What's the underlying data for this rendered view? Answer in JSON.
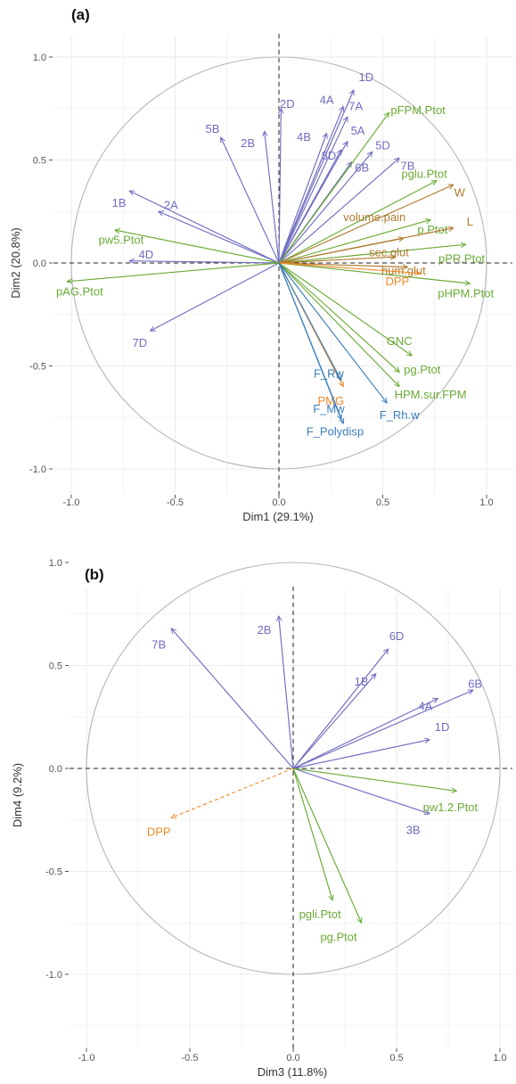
{
  "colors": {
    "purple": "#6f6cc0",
    "green": "#6aaa35",
    "brown": "#b07a2e",
    "orange": "#ee8a2a",
    "blue": "#3a7dbb",
    "grid": "#ebebeb",
    "circle": "#b5b5b5"
  },
  "chart_data": [
    {
      "type": "scatter",
      "panel": "(a)",
      "xlabel": "Dim1 (29.1%)",
      "ylabel": "Dim2 (20.8%)",
      "xlim": [
        -1.0,
        1.0
      ],
      "ylim": [
        -1.0,
        1.0
      ],
      "xticks": [
        "-1.0",
        "-0.5",
        "0.0",
        "0.5",
        "1.0"
      ],
      "yticks": [
        "-1.0",
        "-0.5",
        "0.0",
        "0.5",
        "1.0"
      ],
      "grid": true,
      "vectors": [
        {
          "label": "1D",
          "x": 0.36,
          "y": 0.84,
          "color": "purple",
          "lx": 0.42,
          "ly": 0.9
        },
        {
          "label": "4A",
          "x": 0.31,
          "y": 0.76,
          "color": "purple",
          "lx": 0.23,
          "ly": 0.79
        },
        {
          "label": "7A",
          "x": 0.33,
          "y": 0.71,
          "color": "purple",
          "lx": 0.37,
          "ly": 0.76
        },
        {
          "label": "2D",
          "x": 0.01,
          "y": 0.75,
          "color": "purple",
          "lx": 0.04,
          "ly": 0.77
        },
        {
          "label": "4B",
          "x": 0.23,
          "y": 0.63,
          "color": "purple",
          "lx": 0.12,
          "ly": 0.61
        },
        {
          "label": "5A",
          "x": 0.33,
          "y": 0.59,
          "color": "purple",
          "lx": 0.38,
          "ly": 0.64
        },
        {
          "label": "8D",
          "x": 0.3,
          "y": 0.55,
          "color": "purple",
          "lx": 0.24,
          "ly": 0.52
        },
        {
          "label": "5D",
          "x": 0.45,
          "y": 0.54,
          "color": "purple",
          "lx": 0.5,
          "ly": 0.57
        },
        {
          "label": "6B",
          "x": 0.35,
          "y": 0.49,
          "color": "purple",
          "lx": 0.4,
          "ly": 0.46
        },
        {
          "label": "7B",
          "x": 0.58,
          "y": 0.51,
          "color": "purple",
          "lx": 0.62,
          "ly": 0.47
        },
        {
          "label": "5B",
          "x": -0.28,
          "y": 0.61,
          "color": "purple",
          "lx": -0.32,
          "ly": 0.65
        },
        {
          "label": "2B",
          "x": -0.07,
          "y": 0.64,
          "color": "purple",
          "lx": -0.15,
          "ly": 0.58
        },
        {
          "label": "1B",
          "x": -0.72,
          "y": 0.35,
          "color": "purple",
          "lx": -0.77,
          "ly": 0.29
        },
        {
          "label": "2A",
          "x": -0.58,
          "y": 0.25,
          "color": "purple",
          "lx": -0.52,
          "ly": 0.28
        },
        {
          "label": "4D",
          "x": -0.72,
          "y": 0.01,
          "color": "purple",
          "lx": -0.64,
          "ly": 0.04
        },
        {
          "label": "7D",
          "x": -0.62,
          "y": -0.33,
          "color": "purple",
          "lx": -0.67,
          "ly": -0.39
        },
        {
          "label": "pFPM.Ptot",
          "x": 0.53,
          "y": 0.73,
          "color": "green",
          "lx": 0.67,
          "ly": 0.74
        },
        {
          "label": "pglu.Ptot",
          "x": 0.76,
          "y": 0.4,
          "color": "green",
          "lx": 0.7,
          "ly": 0.43
        },
        {
          "label": "pw5.Ptot",
          "x": -0.79,
          "y": 0.16,
          "color": "green",
          "lx": -0.76,
          "ly": 0.11
        },
        {
          "label": "pAG.Ptot",
          "x": -1.02,
          "y": -0.09,
          "color": "green",
          "lx": -0.96,
          "ly": -0.14
        },
        {
          "label": "p.Ptot",
          "x": 0.73,
          "y": 0.21,
          "color": "green",
          "lx": 0.74,
          "ly": 0.16
        },
        {
          "label": "pPR.Ptot",
          "x": 0.9,
          "y": 0.09,
          "color": "green",
          "lx": 0.88,
          "ly": 0.02
        },
        {
          "label": "pHPM.Ptot",
          "x": 0.92,
          "y": -0.1,
          "color": "green",
          "lx": 0.9,
          "ly": -0.15
        },
        {
          "label": "GNC",
          "x": 0.64,
          "y": -0.45,
          "color": "green",
          "lx": 0.58,
          "ly": -0.38
        },
        {
          "label": "pg.Ptot",
          "x": 0.58,
          "y": -0.6,
          "color": "green",
          "lx": 0.69,
          "ly": -0.52
        },
        {
          "label": "HPM.sur.FPM",
          "x": 0.58,
          "y": -0.53,
          "color": "green",
          "lx": 0.73,
          "ly": -0.64
        },
        {
          "label": "W",
          "x": 0.84,
          "y": 0.38,
          "color": "brown",
          "lx": 0.87,
          "ly": 0.34
        },
        {
          "label": "L",
          "x": 0.84,
          "y": 0.17,
          "color": "brown",
          "lx": 0.92,
          "ly": 0.2
        },
        {
          "label": "volume.pain",
          "x": 0.6,
          "y": 0.12,
          "color": "brown",
          "lx": 0.46,
          "ly": 0.22
        },
        {
          "label": "sec.glut",
          "x": 0.56,
          "y": 0.03,
          "color": "brown",
          "lx": 0.53,
          "ly": 0.05
        },
        {
          "label": "hum.glut",
          "x": 0.62,
          "y": -0.02,
          "color": "brown",
          "lx": 0.6,
          "ly": -0.04
        },
        {
          "label": "DPP",
          "x": 0.68,
          "y": -0.05,
          "color": "orange",
          "lx": 0.57,
          "ly": -0.09
        },
        {
          "label": "PMG",
          "x": 0.31,
          "y": -0.6,
          "color": "orange",
          "lx": 0.25,
          "ly": -0.67
        },
        {
          "label": "F_Rw",
          "x": 0.3,
          "y": -0.57,
          "color": "blue",
          "lx": 0.24,
          "ly": -0.54
        },
        {
          "label": "F_Mw",
          "x": 0.31,
          "y": -0.78,
          "color": "blue",
          "lx": 0.24,
          "ly": -0.71
        },
        {
          "label": "F_Polydisp",
          "x": 0.3,
          "y": -0.76,
          "color": "blue",
          "lx": 0.27,
          "ly": -0.82
        },
        {
          "label": "F_Rh.w",
          "x": 0.52,
          "y": -0.68,
          "color": "blue",
          "lx": 0.58,
          "ly": -0.74
        }
      ]
    },
    {
      "type": "scatter",
      "panel": "(b)",
      "xlabel": "Dim3 (11.8%)",
      "ylabel": "Dim4 (9.2%)",
      "xlim": [
        -1.0,
        1.0
      ],
      "ylim": [
        -1.0,
        1.0
      ],
      "xticks": [
        "-1.0",
        "-0.5",
        "0.0",
        "0.5",
        "1.0"
      ],
      "yticks": [
        "-1.0",
        "-0.5",
        "0.0",
        "0.5",
        "1.0"
      ],
      "grid": true,
      "vectors": [
        {
          "label": "7B",
          "x": -0.59,
          "y": 0.68,
          "color": "purple",
          "lx": -0.65,
          "ly": 0.6
        },
        {
          "label": "2B",
          "x": -0.07,
          "y": 0.74,
          "color": "purple",
          "lx": -0.14,
          "ly": 0.67
        },
        {
          "label": "6D",
          "x": 0.46,
          "y": 0.58,
          "color": "purple",
          "lx": 0.5,
          "ly": 0.64
        },
        {
          "label": "1B",
          "x": 0.4,
          "y": 0.46,
          "color": "purple",
          "lx": 0.33,
          "ly": 0.42
        },
        {
          "label": "6B",
          "x": 0.87,
          "y": 0.38,
          "color": "purple",
          "lx": 0.88,
          "ly": 0.41
        },
        {
          "label": "4A",
          "x": 0.7,
          "y": 0.34,
          "color": "purple",
          "lx": 0.64,
          "ly": 0.3
        },
        {
          "label": "1D",
          "x": 0.66,
          "y": 0.14,
          "color": "purple",
          "lx": 0.72,
          "ly": 0.2
        },
        {
          "label": "3B",
          "x": 0.66,
          "y": -0.22,
          "color": "purple",
          "lx": 0.58,
          "ly": -0.3
        },
        {
          "label": "pw1.2.Ptot",
          "x": 0.79,
          "y": -0.11,
          "color": "green",
          "lx": 0.76,
          "ly": -0.19
        },
        {
          "label": "pgli.Ptot",
          "x": 0.19,
          "y": -0.64,
          "color": "green",
          "lx": 0.13,
          "ly": -0.71
        },
        {
          "label": "pg.Ptot",
          "x": 0.33,
          "y": -0.75,
          "color": "green",
          "lx": 0.22,
          "ly": -0.82
        },
        {
          "label": "DPP",
          "x": -0.59,
          "y": -0.24,
          "color": "orange",
          "lx": -0.65,
          "ly": -0.31,
          "dashed": true
        }
      ]
    }
  ]
}
